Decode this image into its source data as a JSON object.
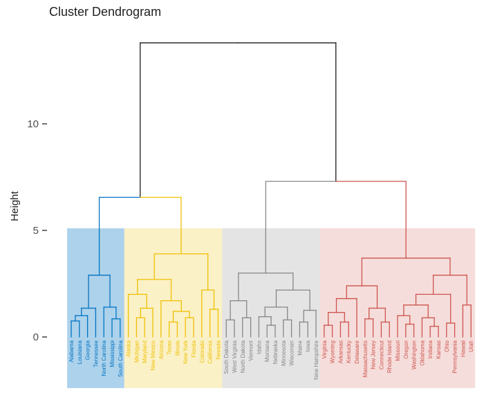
{
  "chart_data": {
    "type": "dendrogram",
    "title": "Cluster Dendrogram",
    "ylabel": "Height",
    "yticks": [
      0,
      5,
      10
    ],
    "ylim": [
      0,
      14
    ],
    "root_height": 13.8,
    "rect_top": 5.1,
    "rect_bottom": -2.4,
    "line_color": "#1a1a1a",
    "tick_color": "#333333",
    "tick_label_color": "#4d4d4d",
    "text_color": "#1f1f1f",
    "clusters": [
      {
        "id": "cluster-1",
        "color": "#0073C2",
        "fill_opacity": 0.32,
        "states": [
          "Alabama",
          "Louisiana",
          "Georgia",
          "Tennessee",
          "North Carolina",
          "Mississippi",
          "South Carolina"
        ]
      },
      {
        "id": "cluster-2",
        "color": "#EFC000",
        "fill_opacity": 0.22,
        "states": [
          "Alaska",
          "Michigan",
          "Maryland",
          "New Mexico",
          "Arizona",
          "Texas",
          "Illinois",
          "New York",
          "Florida",
          "Colorado",
          "California",
          "Nevada"
        ]
      },
      {
        "id": "cluster-3",
        "color": "#868686",
        "fill_opacity": 0.22,
        "states": [
          "South Dakota",
          "West Virginia",
          "North Dakota",
          "Vermont",
          "Idaho",
          "Montana",
          "Nebraska",
          "Minnesota",
          "Wisconsin",
          "Maine",
          "Iowa",
          "New Hampshire"
        ]
      },
      {
        "id": "cluster-4",
        "color": "#CD534C",
        "fill_opacity": 0.2,
        "states": [
          "Virginia",
          "Wyoming",
          "Arkansas",
          "Kentucky",
          "Delaware",
          "Massachusetts",
          "New Jersey",
          "Connecticut",
          "Rhode Island",
          "Missouri",
          "Oregon",
          "Washington",
          "Oklahoma",
          "Indiana",
          "Kansas",
          "Ohio",
          "Pennsylvania",
          "Hawaii",
          "Utah"
        ]
      }
    ],
    "tree": {
      "h": 13.8,
      "children": [
        {
          "h": 6.55,
          "children": [
            {
              "h": 2.9,
              "k": 0,
              "children": [
                {
                  "h": 1.35,
                  "children": [
                    {
                      "h": 1.0,
                      "children": [
                        {
                          "h": 0.75,
                          "children": [
                            {
                              "label": "Alabama"
                            },
                            {
                              "label": "Louisiana"
                            }
                          ]
                        },
                        {
                          "label": "Georgia"
                        }
                      ]
                    },
                    {
                      "label": "Tennessee"
                    }
                  ]
                },
                {
                  "h": 1.4,
                  "children": [
                    {
                      "label": "North Carolina"
                    },
                    {
                      "h": 0.85,
                      "children": [
                        {
                          "label": "Mississippi"
                        },
                        {
                          "label": "South Carolina"
                        }
                      ]
                    }
                  ]
                }
              ]
            },
            {
              "h": 3.9,
              "k": 1,
              "children": [
                {
                  "h": 2.7,
                  "children": [
                    {
                      "h": 2.0,
                      "children": [
                        {
                          "label": "Alaska"
                        },
                        {
                          "h": 1.35,
                          "children": [
                            {
                              "h": 0.9,
                              "children": [
                                {
                                  "label": "Michigan"
                                },
                                {
                                  "label": "Maryland"
                                }
                              ]
                            },
                            {
                              "label": "New Mexico"
                            }
                          ]
                        }
                      ]
                    },
                    {
                      "h": 1.7,
                      "children": [
                        {
                          "label": "Arizona"
                        },
                        {
                          "h": 1.2,
                          "children": [
                            {
                              "h": 0.7,
                              "children": [
                                {
                                  "label": "Texas"
                                },
                                {
                                  "label": "Illinois"
                                }
                              ]
                            },
                            {
                              "h": 0.9,
                              "children": [
                                {
                                  "label": "New York"
                                },
                                {
                                  "label": "Florida"
                                }
                              ]
                            }
                          ]
                        }
                      ]
                    }
                  ]
                },
                {
                  "h": 2.2,
                  "children": [
                    {
                      "label": "Colorado"
                    },
                    {
                      "h": 1.3,
                      "children": [
                        {
                          "label": "California"
                        },
                        {
                          "label": "Nevada"
                        }
                      ]
                    }
                  ]
                }
              ]
            }
          ]
        },
        {
          "h": 7.3,
          "children": [
            {
              "h": 3.0,
              "k": 2,
              "children": [
                {
                  "h": 1.7,
                  "children": [
                    {
                      "h": 0.8,
                      "children": [
                        {
                          "label": "South Dakota"
                        },
                        {
                          "label": "West Virginia"
                        }
                      ]
                    },
                    {
                      "h": 0.9,
                      "children": [
                        {
                          "label": "North Dakota"
                        },
                        {
                          "label": "Vermont"
                        }
                      ]
                    }
                  ]
                },
                {
                  "h": 2.2,
                  "children": [
                    {
                      "h": 1.4,
                      "children": [
                        {
                          "h": 0.95,
                          "children": [
                            {
                              "label": "Idaho"
                            },
                            {
                              "h": 0.55,
                              "children": [
                                {
                                  "label": "Montana"
                                },
                                {
                                  "label": "Nebraska"
                                }
                              ]
                            }
                          ]
                        },
                        {
                          "h": 0.8,
                          "children": [
                            {
                              "label": "Minnesota"
                            },
                            {
                              "label": "Wisconsin"
                            }
                          ]
                        }
                      ]
                    },
                    {
                      "h": 1.25,
                      "children": [
                        {
                          "h": 0.7,
                          "children": [
                            {
                              "label": "Maine"
                            },
                            {
                              "label": "Iowa"
                            }
                          ]
                        },
                        {
                          "label": "New Hampshire"
                        }
                      ]
                    }
                  ]
                }
              ]
            },
            {
              "h": 3.7,
              "k": 3,
              "children": [
                {
                  "h": 2.4,
                  "children": [
                    {
                      "h": 1.8,
                      "children": [
                        {
                          "h": 1.15,
                          "children": [
                            {
                              "h": 0.55,
                              "children": [
                                {
                                  "label": "Virginia"
                                },
                                {
                                  "label": "Wyoming"
                                }
                              ]
                            },
                            {
                              "h": 0.7,
                              "children": [
                                {
                                  "label": "Arkansas"
                                },
                                {
                                  "label": "Kentucky"
                                }
                              ]
                            }
                          ]
                        },
                        {
                          "label": "Delaware"
                        }
                      ]
                    },
                    {
                      "h": 1.35,
                      "children": [
                        {
                          "h": 0.85,
                          "children": [
                            {
                              "label": "Massachusetts"
                            },
                            {
                              "label": "New Jersey"
                            }
                          ]
                        },
                        {
                          "h": 0.7,
                          "children": [
                            {
                              "label": "Connecticut"
                            },
                            {
                              "label": "Rhode Island"
                            }
                          ]
                        }
                      ]
                    }
                  ]
                },
                {
                  "h": 2.9,
                  "children": [
                    {
                      "h": 2.0,
                      "children": [
                        {
                          "h": 1.5,
                          "children": [
                            {
                              "h": 1.0,
                              "children": [
                                {
                                  "label": "Missouri"
                                },
                                {
                                  "h": 0.6,
                                  "children": [
                                    {
                                      "label": "Oregon"
                                    },
                                    {
                                      "label": "Washington"
                                    }
                                  ]
                                }
                              ]
                            },
                            {
                              "h": 0.9,
                              "children": [
                                {
                                  "label": "Oklahoma"
                                },
                                {
                                  "h": 0.5,
                                  "children": [
                                    {
                                      "label": "Indiana"
                                    },
                                    {
                                      "label": "Kansas"
                                    }
                                  ]
                                }
                              ]
                            }
                          ]
                        },
                        {
                          "h": 0.65,
                          "children": [
                            {
                              "label": "Ohio"
                            },
                            {
                              "label": "Pennsylvania"
                            }
                          ]
                        }
                      ]
                    },
                    {
                      "h": 1.5,
                      "children": [
                        {
                          "label": "Hawaii"
                        },
                        {
                          "label": "Utah"
                        }
                      ]
                    }
                  ]
                }
              ]
            }
          ]
        }
      ]
    }
  }
}
